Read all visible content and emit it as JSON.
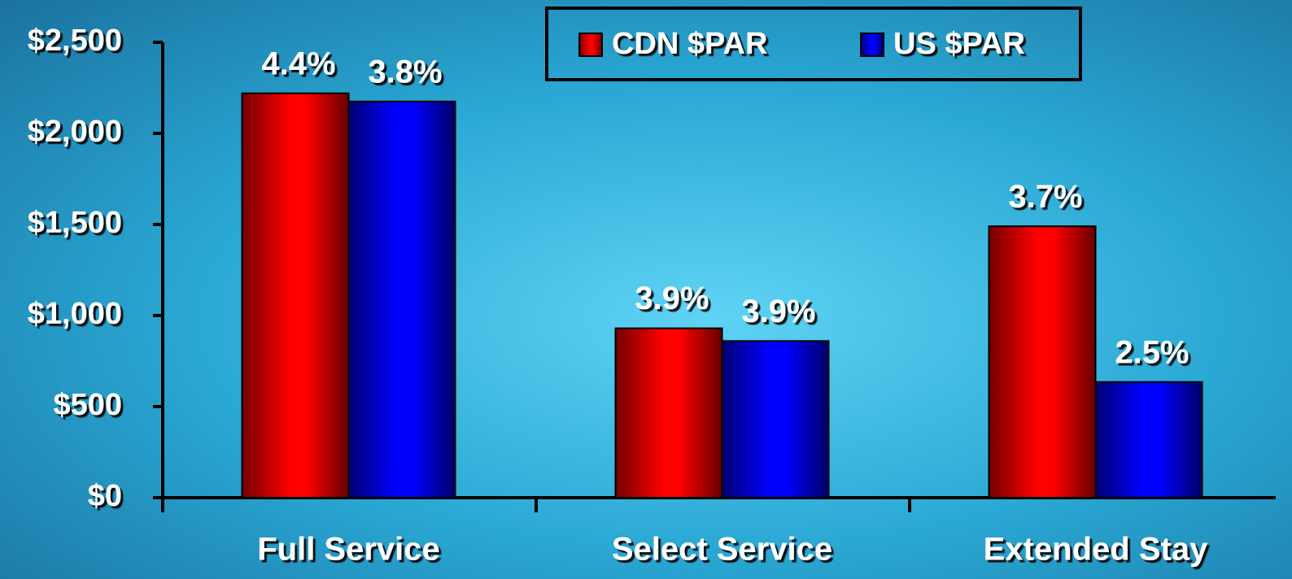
{
  "chart_data": {
    "type": "bar",
    "categories": [
      "Full Service",
      "Select Service",
      "Extended Stay"
    ],
    "series": [
      {
        "name": "CDN $PAR",
        "color": "#ff0000",
        "values": [
          2220,
          930,
          1490
        ],
        "annotations": [
          "4.4%",
          "3.9%",
          "3.7%"
        ]
      },
      {
        "name": "US $PAR",
        "color": "#0000ff",
        "values": [
          2175,
          860,
          635
        ],
        "annotations": [
          "3.8%",
          "3.9%",
          "2.5%"
        ]
      }
    ],
    "ylim": [
      0,
      2500
    ],
    "yticks": [
      {
        "value": 0,
        "label": "$0"
      },
      {
        "value": 500,
        "label": "$500"
      },
      {
        "value": 1000,
        "label": "$1,000"
      },
      {
        "value": 1500,
        "label": "$1,500"
      },
      {
        "value": 2000,
        "label": "$2,000"
      },
      {
        "value": 2500,
        "label": "$2,500"
      }
    ],
    "legend": "top"
  }
}
